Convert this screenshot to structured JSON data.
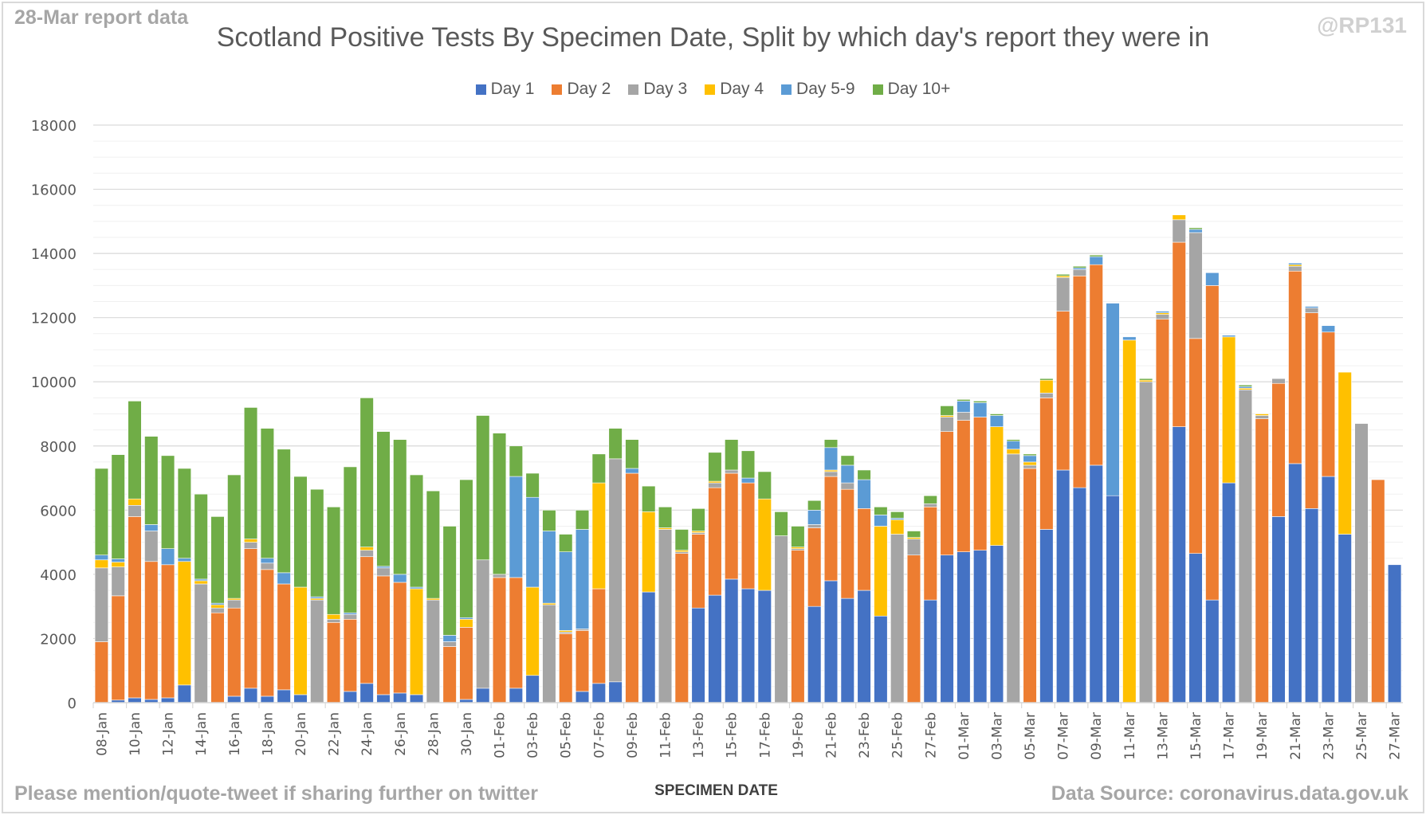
{
  "header": {
    "report_label": "28-Mar report data",
    "handle": "@RP131"
  },
  "footer": {
    "left_note": "Please mention/quote-tweet if sharing further on twitter",
    "source": "Data Source: coronavirus.data.gov.uk"
  },
  "chart_data": {
    "type": "bar",
    "stacked": true,
    "title": "Scotland Positive Tests By Specimen Date, Split by which day's report they were in",
    "xlabel": "SPECIMEN DATE",
    "ylabel": "",
    "ylim": [
      0,
      18000
    ],
    "yticks": [
      0,
      2000,
      4000,
      6000,
      8000,
      10000,
      12000,
      14000,
      16000,
      18000
    ],
    "grid": true,
    "legend_position": "top-center",
    "series_names": [
      "Day 1",
      "Day 2",
      "Day 3",
      "Day 4",
      "Day 5-9",
      "Day 10+"
    ],
    "colors": [
      "#4472c4",
      "#ed7d31",
      "#a5a5a5",
      "#ffc000",
      "#5b9bd5",
      "#70ad47"
    ],
    "categories": [
      "08-Jan",
      "09-Jan",
      "10-Jan",
      "11-Jan",
      "12-Jan",
      "13-Jan",
      "14-Jan",
      "15-Jan",
      "16-Jan",
      "17-Jan",
      "18-Jan",
      "19-Jan",
      "20-Jan",
      "21-Jan",
      "22-Jan",
      "23-Jan",
      "24-Jan",
      "25-Jan",
      "26-Jan",
      "27-Jan",
      "28-Jan",
      "29-Jan",
      "30-Jan",
      "31-Jan",
      "01-Feb",
      "02-Feb",
      "03-Feb",
      "04-Feb",
      "05-Feb",
      "06-Feb",
      "07-Feb",
      "08-Feb",
      "09-Feb",
      "10-Feb",
      "11-Feb",
      "12-Feb",
      "13-Feb",
      "14-Feb",
      "15-Feb",
      "16-Feb",
      "17-Feb",
      "18-Feb",
      "19-Feb",
      "20-Feb",
      "21-Feb",
      "22-Feb",
      "23-Feb",
      "24-Feb",
      "25-Feb",
      "26-Feb",
      "27-Feb",
      "28-Feb",
      "01-Mar",
      "02-Mar",
      "03-Mar",
      "04-Mar",
      "05-Mar",
      "06-Mar",
      "07-Mar",
      "08-Mar",
      "09-Mar",
      "10-Mar",
      "11-Mar",
      "12-Mar",
      "13-Mar",
      "14-Mar",
      "15-Mar",
      "16-Mar",
      "17-Mar",
      "18-Mar",
      "19-Mar",
      "20-Mar",
      "21-Mar",
      "22-Mar",
      "23-Mar",
      "24-Mar",
      "25-Mar",
      "26-Mar",
      "27-Mar"
    ],
    "values_by_day": [
      [
        0,
        1900,
        2300,
        250,
        150,
        2700
      ],
      [
        80,
        3250,
        900,
        150,
        100,
        3250
      ],
      [
        150,
        5650,
        350,
        200,
        0,
        3050
      ],
      [
        100,
        4300,
        950,
        0,
        200,
        2750
      ],
      [
        150,
        4150,
        0,
        0,
        500,
        2900
      ],
      [
        550,
        0,
        0,
        3850,
        100,
        2800
      ],
      [
        0,
        0,
        3700,
        100,
        50,
        2650
      ],
      [
        0,
        2800,
        150,
        100,
        50,
        2700
      ],
      [
        200,
        2750,
        250,
        50,
        0,
        3850
      ],
      [
        450,
        4350,
        200,
        100,
        0,
        4100
      ],
      [
        200,
        3950,
        200,
        0,
        150,
        4050
      ],
      [
        400,
        3300,
        0,
        0,
        350,
        3850
      ],
      [
        250,
        0,
        0,
        3350,
        0,
        3450
      ],
      [
        0,
        0,
        3200,
        50,
        50,
        3350
      ],
      [
        0,
        2500,
        100,
        150,
        0,
        3350
      ],
      [
        350,
        2250,
        150,
        0,
        50,
        4550
      ],
      [
        600,
        3950,
        200,
        100,
        0,
        4650
      ],
      [
        250,
        3700,
        250,
        0,
        50,
        4200
      ],
      [
        300,
        3450,
        0,
        0,
        250,
        4200
      ],
      [
        250,
        0,
        0,
        3300,
        50,
        3500
      ],
      [
        0,
        0,
        3200,
        50,
        0,
        3350
      ],
      [
        0,
        1750,
        150,
        0,
        200,
        3400
      ],
      [
        100,
        2250,
        0,
        250,
        50,
        4300
      ],
      [
        450,
        0,
        4000,
        0,
        0,
        4500
      ],
      [
        0,
        3900,
        100,
        0,
        0,
        4400
      ],
      [
        450,
        3450,
        0,
        0,
        3150,
        950
      ],
      [
        850,
        0,
        0,
        2750,
        2800,
        750
      ],
      [
        0,
        0,
        3050,
        50,
        2250,
        650
      ],
      [
        0,
        2150,
        50,
        50,
        2450,
        550
      ],
      [
        350,
        1900,
        50,
        0,
        3100,
        600
      ],
      [
        600,
        2950,
        0,
        3300,
        0,
        900
      ],
      [
        650,
        0,
        6950,
        0,
        0,
        950
      ],
      [
        0,
        7150,
        0,
        0,
        150,
        900
      ],
      [
        3450,
        0,
        0,
        2500,
        0,
        800
      ],
      [
        0,
        0,
        5400,
        50,
        0,
        650
      ],
      [
        0,
        4650,
        50,
        50,
        0,
        650
      ],
      [
        2950,
        2300,
        50,
        50,
        0,
        700
      ],
      [
        3350,
        3350,
        150,
        50,
        0,
        900
      ],
      [
        3850,
        3300,
        100,
        0,
        0,
        950
      ],
      [
        3550,
        3300,
        0,
        0,
        150,
        850
      ],
      [
        3500,
        0,
        0,
        2850,
        0,
        850
      ],
      [
        0,
        0,
        5200,
        0,
        0,
        750
      ],
      [
        0,
        4750,
        50,
        50,
        0,
        650
      ],
      [
        3000,
        2450,
        100,
        0,
        450,
        300
      ],
      [
        3800,
        3250,
        150,
        50,
        700,
        250
      ],
      [
        3250,
        3400,
        200,
        0,
        550,
        300
      ],
      [
        3500,
        2550,
        0,
        0,
        900,
        300
      ],
      [
        2700,
        0,
        0,
        2800,
        350,
        250
      ],
      [
        0,
        0,
        5250,
        450,
        50,
        200
      ],
      [
        0,
        4600,
        500,
        50,
        0,
        200
      ],
      [
        3200,
        2900,
        100,
        0,
        0,
        250
      ],
      [
        4600,
        3850,
        450,
        50,
        0,
        300
      ],
      [
        4700,
        4100,
        250,
        0,
        350,
        50
      ],
      [
        4750,
        4150,
        0,
        0,
        450,
        50
      ],
      [
        4900,
        0,
        0,
        3700,
        350,
        50
      ],
      [
        0,
        0,
        7750,
        150,
        250,
        50
      ],
      [
        0,
        7300,
        100,
        100,
        200,
        50
      ],
      [
        5400,
        4100,
        150,
        400,
        0,
        50
      ],
      [
        7250,
        4950,
        1050,
        50,
        0,
        50
      ],
      [
        6700,
        6600,
        200,
        0,
        50,
        50
      ],
      [
        7400,
        6250,
        0,
        0,
        250,
        50
      ],
      [
        6450,
        0,
        0,
        0,
        6000,
        0
      ],
      [
        0,
        0,
        0,
        11300,
        100,
        0
      ],
      [
        0,
        0,
        10000,
        50,
        0,
        50
      ],
      [
        0,
        11950,
        150,
        50,
        50,
        0
      ],
      [
        8600,
        5750,
        700,
        150,
        0,
        0
      ],
      [
        4650,
        6700,
        3300,
        0,
        100,
        50
      ],
      [
        3200,
        9800,
        0,
        0,
        400,
        0
      ],
      [
        6850,
        0,
        0,
        4550,
        50,
        0
      ],
      [
        0,
        0,
        9750,
        50,
        50,
        50
      ],
      [
        0,
        8850,
        100,
        50,
        0,
        0
      ],
      [
        5800,
        4150,
        150,
        0,
        0,
        0
      ],
      [
        7450,
        6000,
        150,
        50,
        50,
        0
      ],
      [
        6050,
        6100,
        150,
        0,
        50,
        0
      ],
      [
        7050,
        4500,
        0,
        0,
        200,
        0
      ],
      [
        5250,
        0,
        0,
        5050,
        0,
        0
      ],
      [
        0,
        0,
        8700,
        0,
        0,
        0
      ],
      [
        0,
        6950,
        0,
        0,
        0,
        0
      ],
      [
        4300,
        0,
        0,
        0,
        0,
        0
      ]
    ]
  }
}
